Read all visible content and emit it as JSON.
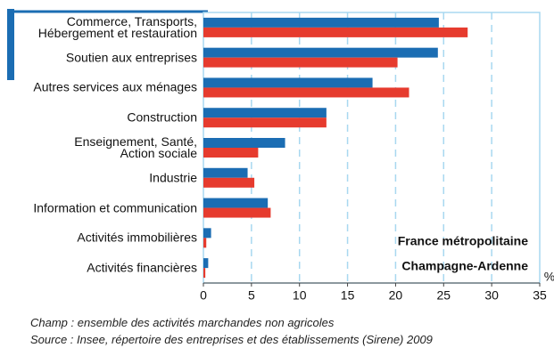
{
  "chart_data": {
    "type": "hbar",
    "categories": [
      "Commerce, Transports,\nHébergement et restauration",
      "Soutien aux entreprises",
      "Autres services aux ménages",
      "Construction",
      "Enseignement, Santé,\nAction sociale",
      "Industrie",
      "Information et communication",
      "Activités immobilières",
      "Activités financières"
    ],
    "series": [
      {
        "name": "France métropolitaine",
        "color": "#1b6db3",
        "values": [
          24.5,
          24.4,
          17.6,
          12.8,
          8.5,
          4.6,
          6.7,
          0.8,
          0.5
        ]
      },
      {
        "name": "Champagne-Ardenne",
        "color": "#e63b2e",
        "values": [
          27.5,
          20.2,
          21.4,
          12.8,
          5.7,
          5.3,
          7.0,
          0.3,
          0.2
        ]
      }
    ],
    "xlim": [
      0,
      35
    ],
    "xticks": [
      0,
      5,
      10,
      15,
      20,
      25,
      30,
      35
    ],
    "x_unit": "%",
    "grid": true,
    "notes": [
      "Champ : ensemble des activités marchandes non agricoles",
      "Source  : Insee, répertoire des entreprises et des établissements (Sirene) 2009"
    ]
  }
}
